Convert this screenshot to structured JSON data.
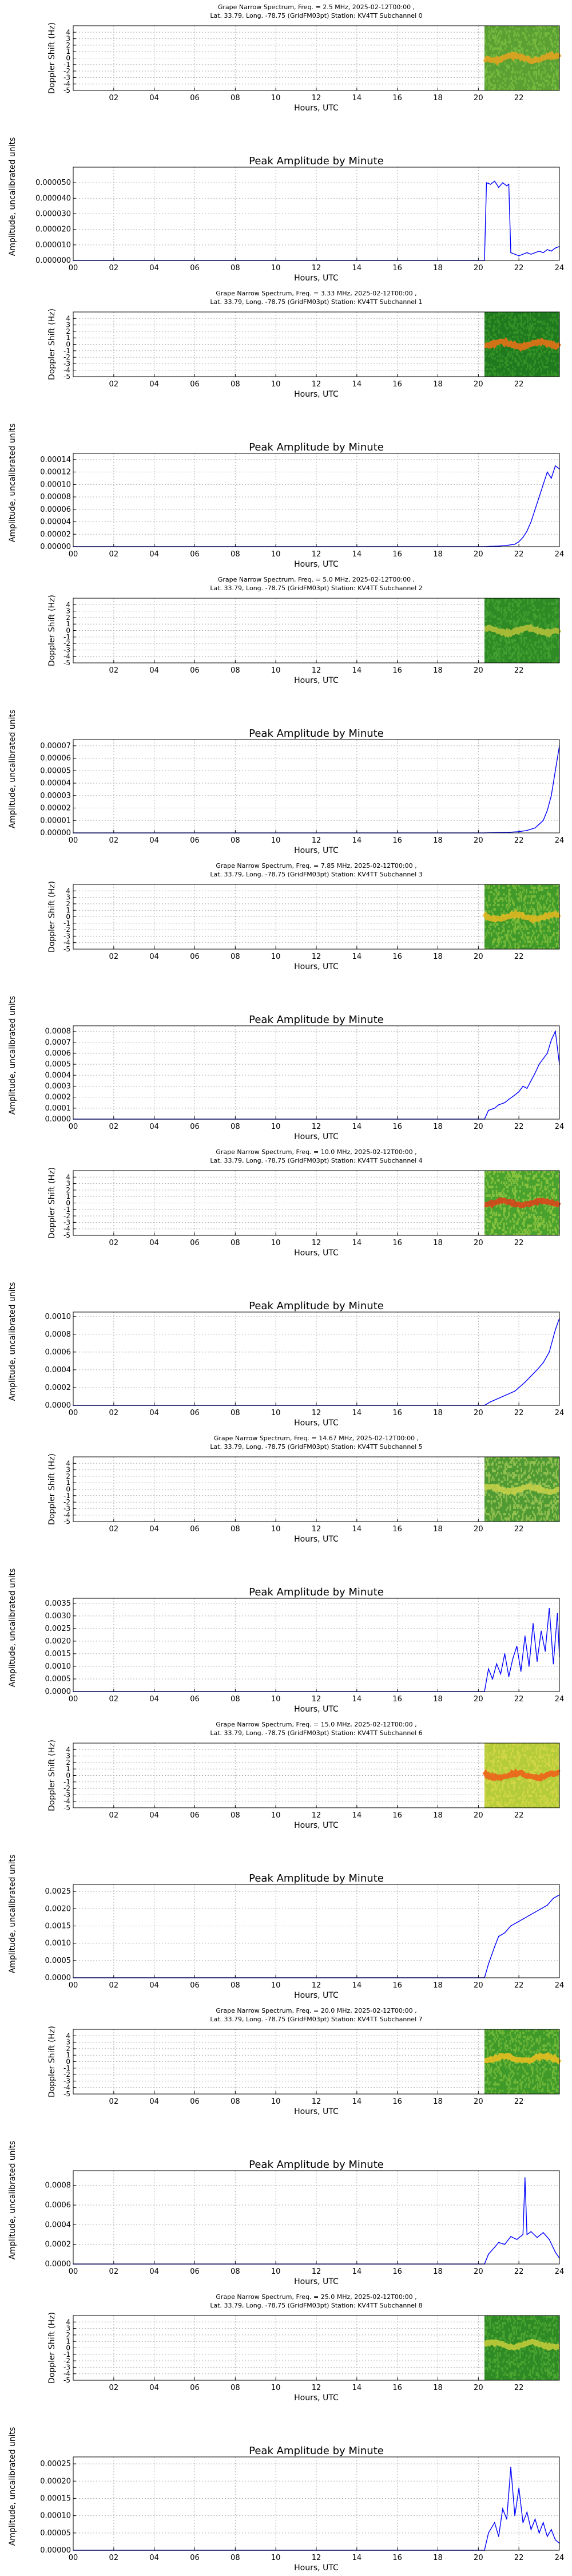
{
  "chart_data": [
    {
      "type": "heatmap",
      "title_line1": "Grape Narrow Spectrum, Freq. = 2.5 MHz, 2025-02-12T00:00 ,",
      "title_line2": "Lat.  33.79, Long. -78.75 (GridFM03pt) Station: KV4TT Subchannel 0",
      "xlabel": "Hours, UTC",
      "ylabel": "Doppler Shift (Hz)",
      "xlim": [
        0,
        24
      ],
      "ylim": [
        -5,
        5
      ],
      "xticks": [
        "02",
        "04",
        "06",
        "08",
        "10",
        "12",
        "14",
        "16",
        "18",
        "20",
        "22"
      ],
      "yticks": [
        "4",
        "3",
        "2",
        "1",
        "0",
        "-1",
        "-2",
        "-3",
        "-4",
        "-5"
      ],
      "data_start_hour": 20.3,
      "grid": true,
      "palette": {
        "bg": "#5aa032",
        "band": "#e9a21e",
        "band_level": 0,
        "speckle": "#7fc143"
      }
    },
    {
      "type": "line",
      "title": "Peak Amplitude by Minute",
      "xlabel": "Hours, UTC",
      "ylabel": "Amplitude, uncalibrated units",
      "xlim": [
        0,
        24
      ],
      "ylim": [
        0,
        6e-05
      ],
      "xticks": [
        "00",
        "02",
        "04",
        "06",
        "08",
        "10",
        "12",
        "14",
        "16",
        "18",
        "20",
        "22",
        "24"
      ],
      "yticks": [
        "0.000000",
        "0.000010",
        "0.000020",
        "0.000030",
        "0.000040",
        "0.000050"
      ],
      "x": [
        0,
        20.3,
        20.4,
        20.6,
        20.8,
        21.0,
        21.2,
        21.4,
        21.5,
        21.6,
        21.8,
        22.0,
        22.2,
        22.4,
        22.6,
        22.8,
        23.0,
        23.2,
        23.4,
        23.6,
        23.8,
        24.0
      ],
      "y": [
        0,
        0,
        5e-05,
        4.9e-05,
        5.1e-05,
        4.7e-05,
        5e-05,
        4.8e-05,
        4.9e-05,
        5e-06,
        4e-06,
        3e-06,
        4e-06,
        5e-06,
        4e-06,
        5e-06,
        6e-06,
        5e-06,
        7e-06,
        6e-06,
        8e-06,
        9e-06
      ],
      "color": "#0000ff",
      "grid": true
    },
    {
      "type": "heatmap",
      "title_line1": "Grape Narrow Spectrum, Freq. = 3.33 MHz, 2025-02-12T00:00 ,",
      "title_line2": "Lat.  33.79, Long. -78.75 (GridFM03pt) Station: KV4TT Subchannel 1",
      "xlabel": "Hours, UTC",
      "ylabel": "Doppler Shift (Hz)",
      "xlim": [
        0,
        24
      ],
      "ylim": [
        -5,
        5
      ],
      "xticks": [
        "02",
        "04",
        "06",
        "08",
        "10",
        "12",
        "14",
        "16",
        "18",
        "20",
        "22"
      ],
      "yticks": [
        "4",
        "3",
        "2",
        "1",
        "0",
        "-1",
        "-2",
        "-3",
        "-4",
        "-5"
      ],
      "data_start_hour": 20.3,
      "grid": true,
      "palette": {
        "bg": "#1f7a1f",
        "band": "#f07018",
        "band_level": 0,
        "speckle": "#3a9a2a"
      }
    },
    {
      "type": "line",
      "title": "Peak Amplitude by Minute",
      "xlabel": "Hours, UTC",
      "ylabel": "Amplitude, uncalibrated units",
      "xlim": [
        0,
        24
      ],
      "ylim": [
        0,
        0.00015
      ],
      "xticks": [
        "00",
        "02",
        "04",
        "06",
        "08",
        "10",
        "12",
        "14",
        "16",
        "18",
        "20",
        "22",
        "24"
      ],
      "yticks": [
        "0.00000",
        "0.00002",
        "0.00004",
        "0.00006",
        "0.00008",
        "0.00010",
        "0.00012",
        "0.00014"
      ],
      "x": [
        0,
        20.3,
        20.6,
        21.0,
        21.4,
        21.8,
        22.0,
        22.2,
        22.4,
        22.6,
        22.8,
        23.0,
        23.2,
        23.4,
        23.6,
        23.8,
        24.0
      ],
      "y": [
        0,
        0,
        5e-07,
        1e-06,
        2e-06,
        4e-06,
        8e-06,
        1.5e-05,
        2.5e-05,
        4e-05,
        6e-05,
        8e-05,
        0.0001,
        0.00012,
        0.00011,
        0.00013,
        0.000125
      ],
      "color": "#0000ff",
      "grid": true
    },
    {
      "type": "heatmap",
      "title_line1": "Grape Narrow Spectrum, Freq. = 5.0 MHz, 2025-02-12T00:00 ,",
      "title_line2": "Lat.  33.79, Long. -78.75 (GridFM03pt) Station: KV4TT Subchannel 2",
      "xlabel": "Hours, UTC",
      "ylabel": "Doppler Shift (Hz)",
      "xlim": [
        0,
        24
      ],
      "ylim": [
        -5,
        5
      ],
      "xticks": [
        "02",
        "04",
        "06",
        "08",
        "10",
        "12",
        "14",
        "16",
        "18",
        "20",
        "22"
      ],
      "yticks": [
        "4",
        "3",
        "2",
        "1",
        "0",
        "-1",
        "-2",
        "-3",
        "-4",
        "-5"
      ],
      "data_start_hour": 20.3,
      "grid": true,
      "palette": {
        "bg": "#2e8a24",
        "band": "#b9c23a",
        "band_level": 0,
        "speckle": "#49a534"
      }
    },
    {
      "type": "line",
      "title": "Peak Amplitude by Minute",
      "xlabel": "Hours, UTC",
      "ylabel": "Amplitude, uncalibrated units",
      "xlim": [
        0,
        24
      ],
      "ylim": [
        0,
        7.5e-05
      ],
      "xticks": [
        "00",
        "02",
        "04",
        "06",
        "08",
        "10",
        "12",
        "14",
        "16",
        "18",
        "20",
        "22",
        "24"
      ],
      "yticks": [
        "0.00000",
        "0.00001",
        "0.00002",
        "0.00003",
        "0.00004",
        "0.00005",
        "0.00006",
        "0.00007"
      ],
      "x": [
        0,
        20.3,
        21.0,
        21.5,
        22.0,
        22.4,
        22.8,
        23.0,
        23.2,
        23.4,
        23.6,
        23.8,
        24.0
      ],
      "y": [
        0,
        0,
        3e-07,
        5e-07,
        1e-06,
        2e-06,
        4e-06,
        7e-06,
        1e-05,
        1.8e-05,
        3e-05,
        5e-05,
        7e-05
      ],
      "color": "#0000ff",
      "grid": true
    },
    {
      "type": "heatmap",
      "title_line1": "Grape Narrow Spectrum, Freq. = 7.85 MHz, 2025-02-12T00:00 ,",
      "title_line2": "Lat.  33.79, Long. -78.75 (GridFM03pt) Station: KV4TT Subchannel 3",
      "xlabel": "Hours, UTC",
      "ylabel": "Doppler Shift (Hz)",
      "xlim": [
        0,
        24
      ],
      "ylim": [
        -5,
        5
      ],
      "xticks": [
        "02",
        "04",
        "06",
        "08",
        "10",
        "12",
        "14",
        "16",
        "18",
        "20",
        "22"
      ],
      "yticks": [
        "4",
        "3",
        "2",
        "1",
        "0",
        "-1",
        "-2",
        "-3",
        "-4",
        "-5"
      ],
      "data_start_hour": 20.3,
      "grid": true,
      "palette": {
        "bg": "#3f9a2a",
        "band": "#e8b820",
        "band_level": 0,
        "speckle": "#8ac23e"
      }
    },
    {
      "type": "line",
      "title": "Peak Amplitude by Minute",
      "xlabel": "Hours, UTC",
      "ylabel": "Amplitude, uncalibrated units",
      "xlim": [
        0,
        24
      ],
      "ylim": [
        0,
        0.00085
      ],
      "xticks": [
        "00",
        "02",
        "04",
        "06",
        "08",
        "10",
        "12",
        "14",
        "16",
        "18",
        "20",
        "22",
        "24"
      ],
      "yticks": [
        "0.0000",
        "0.0001",
        "0.0002",
        "0.0003",
        "0.0004",
        "0.0005",
        "0.0006",
        "0.0007",
        "0.0008"
      ],
      "x": [
        0,
        20.3,
        20.5,
        20.8,
        21.0,
        21.3,
        21.5,
        21.8,
        22.0,
        22.2,
        22.4,
        22.6,
        22.8,
        23.0,
        23.2,
        23.4,
        23.6,
        23.8,
        24.0
      ],
      "y": [
        0,
        0,
        8e-05,
        0.0001,
        0.00013,
        0.00015,
        0.00018,
        0.00022,
        0.00025,
        0.0003,
        0.00028,
        0.00035,
        0.00042,
        0.0005,
        0.00055,
        0.0006,
        0.00072,
        0.0008,
        0.0005
      ],
      "color": "#0000ff",
      "grid": true
    },
    {
      "type": "heatmap",
      "title_line1": "Grape Narrow Spectrum, Freq. = 10.0 MHz, 2025-02-12T00:00 ,",
      "title_line2": "Lat.  33.79, Long. -78.75 (GridFM03pt) Station: KV4TT Subchannel 4",
      "xlabel": "Hours, UTC",
      "ylabel": "Doppler Shift (Hz)",
      "xlim": [
        0,
        24
      ],
      "ylim": [
        -5,
        5
      ],
      "xticks": [
        "02",
        "04",
        "06",
        "08",
        "10",
        "12",
        "14",
        "16",
        "18",
        "20",
        "22"
      ],
      "yticks": [
        "4",
        "3",
        "2",
        "1",
        "0",
        "-1",
        "-2",
        "-3",
        "-4",
        "-5"
      ],
      "data_start_hour": 20.3,
      "grid": true,
      "palette": {
        "bg": "#4aa22e",
        "band": "#e0401a",
        "band_level": 0,
        "speckle": "#9bcc44"
      }
    },
    {
      "type": "line",
      "title": "Peak Amplitude by Minute",
      "xlabel": "Hours, UTC",
      "ylabel": "Amplitude, uncalibrated units",
      "xlim": [
        0,
        24
      ],
      "ylim": [
        0,
        0.00105
      ],
      "xticks": [
        "00",
        "02",
        "04",
        "06",
        "08",
        "10",
        "12",
        "14",
        "16",
        "18",
        "20",
        "22",
        "24"
      ],
      "yticks": [
        "0.0000",
        "0.0002",
        "0.0004",
        "0.0006",
        "0.0008",
        "0.0010"
      ],
      "x": [
        0,
        20.3,
        20.6,
        21.0,
        21.4,
        21.8,
        22.0,
        22.3,
        22.6,
        22.9,
        23.2,
        23.5,
        23.8,
        24.0
      ],
      "y": [
        0,
        0,
        4e-05,
        8e-05,
        0.00012,
        0.00016,
        0.0002,
        0.00026,
        0.00033,
        0.0004,
        0.00048,
        0.0006,
        0.00085,
        0.00098
      ],
      "color": "#0000ff",
      "grid": true
    },
    {
      "type": "heatmap",
      "title_line1": "Grape Narrow Spectrum, Freq. = 14.67 MHz, 2025-02-12T00:00 ,",
      "title_line2": "Lat.  33.79, Long. -78.75 (GridFM03pt) Station: KV4TT Subchannel 5",
      "xlabel": "Hours, UTC",
      "ylabel": "Doppler Shift (Hz)",
      "xlim": [
        0,
        24
      ],
      "ylim": [
        -5,
        5
      ],
      "xticks": [
        "02",
        "04",
        "06",
        "08",
        "10",
        "12",
        "14",
        "16",
        "18",
        "20",
        "22"
      ],
      "yticks": [
        "4",
        "3",
        "2",
        "1",
        "0",
        "-1",
        "-2",
        "-3",
        "-4",
        "-5"
      ],
      "data_start_hour": 20.3,
      "grid": true,
      "palette": {
        "bg": "#4f9a33",
        "band": "#c9d24a",
        "band_level": 0,
        "speckle": "#a8cc5a"
      }
    },
    {
      "type": "line",
      "title": "Peak Amplitude by Minute",
      "xlabel": "Hours, UTC",
      "ylabel": "Amplitude, uncalibrated units",
      "xlim": [
        0,
        24
      ],
      "ylim": [
        0,
        0.0037
      ],
      "xticks": [
        "00",
        "02",
        "04",
        "06",
        "08",
        "10",
        "12",
        "14",
        "16",
        "18",
        "20",
        "22",
        "24"
      ],
      "yticks": [
        "0.0000",
        "0.0005",
        "0.0010",
        "0.0015",
        "0.0020",
        "0.0025",
        "0.0030",
        "0.0035"
      ],
      "x": [
        0,
        20.3,
        20.5,
        20.7,
        20.9,
        21.1,
        21.3,
        21.5,
        21.7,
        21.9,
        22.1,
        22.3,
        22.5,
        22.7,
        22.9,
        23.1,
        23.3,
        23.5,
        23.7,
        23.9,
        24.0
      ],
      "y": [
        0,
        0,
        0.0009,
        0.0005,
        0.0011,
        0.0007,
        0.0015,
        0.0006,
        0.0013,
        0.0018,
        0.0008,
        0.0022,
        0.001,
        0.0027,
        0.0012,
        0.0024,
        0.0016,
        0.0033,
        0.0011,
        0.0031,
        0.0014
      ],
      "color": "#0000ff",
      "grid": true
    },
    {
      "type": "heatmap",
      "title_line1": "Grape Narrow Spectrum, Freq. = 15.0 MHz, 2025-02-12T00:00 ,",
      "title_line2": "Lat.  33.79, Long. -78.75 (GridFM03pt) Station: KV4TT Subchannel 6",
      "xlabel": "Hours, UTC",
      "ylabel": "Doppler Shift (Hz)",
      "xlim": [
        0,
        24
      ],
      "ylim": [
        -5,
        5
      ],
      "xticks": [
        "02",
        "04",
        "06",
        "08",
        "10",
        "12",
        "14",
        "16",
        "18",
        "20",
        "22"
      ],
      "yticks": [
        "4",
        "3",
        "2",
        "1",
        "0",
        "-1",
        "-2",
        "-3",
        "-4",
        "-5"
      ],
      "data_start_hour": 20.3,
      "grid": true,
      "palette": {
        "bg": "#b5cc3a",
        "band": "#f05a18",
        "band_level": 0,
        "speckle": "#d8d84a"
      }
    },
    {
      "type": "line",
      "title": "Peak Amplitude by Minute",
      "xlabel": "Hours, UTC",
      "ylabel": "Amplitude, uncalibrated units",
      "xlim": [
        0,
        24
      ],
      "ylim": [
        0,
        0.0027
      ],
      "xticks": [
        "00",
        "02",
        "04",
        "06",
        "08",
        "10",
        "12",
        "14",
        "16",
        "18",
        "20",
        "22",
        "24"
      ],
      "yticks": [
        "0.0000",
        "0.0005",
        "0.0010",
        "0.0015",
        "0.0020",
        "0.0025"
      ],
      "x": [
        0,
        20.3,
        20.5,
        20.8,
        21.0,
        21.3,
        21.6,
        21.9,
        22.2,
        22.5,
        22.8,
        23.1,
        23.4,
        23.7,
        24.0
      ],
      "y": [
        0,
        0,
        0.0004,
        0.0009,
        0.0012,
        0.0013,
        0.0015,
        0.0016,
        0.0017,
        0.0018,
        0.0019,
        0.002,
        0.0021,
        0.0023,
        0.0024
      ],
      "color": "#0000ff",
      "grid": true
    },
    {
      "type": "heatmap",
      "title_line1": "Grape Narrow Spectrum, Freq. = 20.0 MHz, 2025-02-12T00:00 ,",
      "title_line2": "Lat.  33.79, Long. -78.75 (GridFM03pt) Station: KV4TT Subchannel 7",
      "xlabel": "Hours, UTC",
      "ylabel": "Doppler Shift (Hz)",
      "xlim": [
        0,
        24
      ],
      "ylim": [
        -5,
        5
      ],
      "xticks": [
        "02",
        "04",
        "06",
        "08",
        "10",
        "12",
        "14",
        "16",
        "18",
        "20",
        "22"
      ],
      "yticks": [
        "4",
        "3",
        "2",
        "1",
        "0",
        "-1",
        "-2",
        "-3",
        "-4",
        "-5"
      ],
      "data_start_hour": 20.3,
      "grid": true,
      "palette": {
        "bg": "#3f9a2a",
        "band": "#f0c020",
        "band_level": 0.5,
        "speckle": "#7cbf3c"
      }
    },
    {
      "type": "line",
      "title": "Peak Amplitude by Minute",
      "xlabel": "Hours, UTC",
      "ylabel": "Amplitude, uncalibrated units",
      "xlim": [
        0,
        24
      ],
      "ylim": [
        0,
        0.00095
      ],
      "xticks": [
        "00",
        "02",
        "04",
        "06",
        "08",
        "10",
        "12",
        "14",
        "16",
        "18",
        "20",
        "22",
        "24"
      ],
      "yticks": [
        "0.0000",
        "0.0002",
        "0.0004",
        "0.0006",
        "0.0008"
      ],
      "x": [
        0,
        20.3,
        20.5,
        20.8,
        21.0,
        21.3,
        21.6,
        21.9,
        22.2,
        22.3,
        22.4,
        22.6,
        22.9,
        23.2,
        23.5,
        23.8,
        24.0
      ],
      "y": [
        0,
        0,
        0.0001,
        0.00017,
        0.00022,
        0.0002,
        0.00028,
        0.00025,
        0.0003,
        0.00088,
        0.0003,
        0.00033,
        0.00027,
        0.00032,
        0.00025,
        0.00012,
        6e-05
      ],
      "color": "#0000ff",
      "grid": true
    },
    {
      "type": "heatmap",
      "title_line1": "Grape Narrow Spectrum, Freq. = 25.0 MHz, 2025-02-12T00:00 ,",
      "title_line2": "Lat.  33.79, Long. -78.75 (GridFM03pt) Station: KV4TT Subchannel 8",
      "xlabel": "Hours, UTC",
      "ylabel": "Doppler Shift (Hz)",
      "xlim": [
        0,
        24
      ],
      "ylim": [
        -5,
        5
      ],
      "xticks": [
        "02",
        "04",
        "06",
        "08",
        "10",
        "12",
        "14",
        "16",
        "18",
        "20",
        "22"
      ],
      "yticks": [
        "4",
        "3",
        "2",
        "1",
        "0",
        "-1",
        "-2",
        "-3",
        "-4",
        "-5"
      ],
      "data_start_hour": 20.3,
      "grid": true,
      "palette": {
        "bg": "#2e8a24",
        "band": "#c8cc3a",
        "band_level": 0.5,
        "speckle": "#56ad36"
      }
    },
    {
      "type": "line",
      "title": "Peak Amplitude by Minute",
      "xlabel": "Hours, UTC",
      "ylabel": "Amplitude, uncalibrated units",
      "xlim": [
        0,
        24
      ],
      "ylim": [
        0,
        0.00027
      ],
      "xticks": [
        "00",
        "02",
        "04",
        "06",
        "08",
        "10",
        "12",
        "14",
        "16",
        "18",
        "20",
        "22",
        "24"
      ],
      "yticks": [
        "0.00000",
        "0.00005",
        "0.00010",
        "0.00015",
        "0.00020",
        "0.00025"
      ],
      "x": [
        0,
        20.3,
        20.5,
        20.8,
        21.0,
        21.2,
        21.4,
        21.6,
        21.8,
        22.0,
        22.2,
        22.4,
        22.6,
        22.8,
        23.0,
        23.2,
        23.4,
        23.6,
        23.8,
        24.0
      ],
      "y": [
        0,
        0,
        5e-05,
        8e-05,
        4e-05,
        0.00012,
        9e-05,
        0.00024,
        0.0001,
        0.00018,
        8e-05,
        0.00011,
        6e-05,
        9e-05,
        5e-05,
        8e-05,
        4e-05,
        6e-05,
        3e-05,
        2e-05
      ],
      "color": "#0000ff",
      "grid": true
    }
  ]
}
